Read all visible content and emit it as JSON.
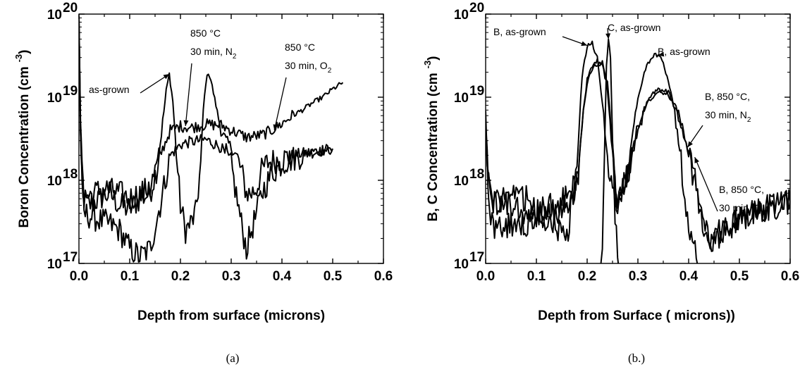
{
  "chart_data": [
    {
      "type": "line",
      "panel": "a",
      "caption": "(a)",
      "xlabel": "Depth from surface (microns)",
      "ylabel": "Boron Concentration (cm",
      "ylabel_sup": "-3",
      "ylabel_close": ")",
      "xlim": [
        0,
        0.6
      ],
      "ylim": [
        1e+17,
        1e+20
      ],
      "yscale": "log",
      "xticks": [
        "0.0",
        "0.1",
        "0.2",
        "0.3",
        "0.4",
        "0.5",
        "0.6"
      ],
      "ytick_mantissa": "10",
      "ytick_exponents": [
        "17",
        "18",
        "19",
        "20"
      ],
      "grid": false,
      "annotations": [
        {
          "lines": [
            "as-grown"
          ],
          "subscript": "",
          "tip": [
            0.178,
            1.9e+19
          ]
        },
        {
          "lines": [
            "850 °C",
            "30 min, N"
          ],
          "subscript": "2",
          "tip": [
            0.21,
            4.5e+18
          ]
        },
        {
          "lines": [
            "850 °C",
            "30 min, O"
          ],
          "subscript": "2",
          "tip": [
            0.385,
            4e+18
          ]
        }
      ],
      "series": [
        {
          "name": "as-grown",
          "x": [
            0.0,
            0.003,
            0.006,
            0.01,
            0.02,
            0.04,
            0.06,
            0.08,
            0.1,
            0.12,
            0.14,
            0.155,
            0.165,
            0.172,
            0.178,
            0.185,
            0.192,
            0.2,
            0.21,
            0.22,
            0.23,
            0.24,
            0.245,
            0.25,
            0.255,
            0.26,
            0.27,
            0.28,
            0.29,
            0.3,
            0.31,
            0.32,
            0.33,
            0.34,
            0.35,
            0.36,
            0.37,
            0.38,
            0.4,
            0.42,
            0.44,
            0.46,
            0.48,
            0.5
          ],
          "y": [
            9e+19,
            5e+18,
            1.5e+18,
            6e+17,
            5e+17,
            6e+17,
            7e+17,
            5e+17,
            4.5e+17,
            6e+17,
            7e+17,
            1.5e+18,
            5e+18,
            1.2e+19,
            1.9e+19,
            9e+18,
            2e+18,
            5e+17,
            2.5e+17,
            3e+17,
            4e+17,
            1.5e+18,
            7e+18,
            1.5e+19,
            2e+19,
            1.6e+19,
            8e+18,
            4e+18,
            3e+18,
            2.5e+18,
            2e+18,
            1.3e+18,
            7e+17,
            7e+17,
            8e+17,
            1.3e+18,
            1.6e+18,
            1.7e+18,
            1.8e+18,
            2e+18,
            2.1e+18,
            2.2e+18,
            2.3e+18,
            2.4e+18
          ]
        },
        {
          "name": "850 °C 30 min, N2",
          "x": [
            0.0,
            0.003,
            0.006,
            0.01,
            0.03,
            0.06,
            0.08,
            0.1,
            0.12,
            0.14,
            0.16,
            0.18,
            0.2,
            0.22,
            0.25,
            0.28,
            0.3,
            0.32,
            0.33,
            0.34,
            0.35,
            0.36,
            0.38,
            0.4,
            0.42,
            0.45,
            0.48,
            0.5
          ],
          "y": [
            9e+19,
            4e+18,
            1e+18,
            4e+17,
            3.5e+17,
            3e+17,
            2.5e+17,
            1.5e+17,
            1.2e+17,
            1.5e+17,
            5e+17,
            2e+18,
            2.7e+18,
            2.9e+18,
            3.1e+18,
            2.5e+18,
            1.5e+18,
            3e+17,
            1.5e+17,
            2.5e+17,
            4e+17,
            7e+17,
            1.2e+18,
            1.6e+18,
            1.8e+18,
            2.1e+18,
            2.3e+18,
            2.4e+18
          ]
        },
        {
          "name": "850 °C 30 min, O2",
          "x": [
            0.0,
            0.003,
            0.006,
            0.01,
            0.03,
            0.05,
            0.08,
            0.1,
            0.12,
            0.14,
            0.16,
            0.18,
            0.2,
            0.22,
            0.25,
            0.28,
            0.3,
            0.33,
            0.36,
            0.38,
            0.4,
            0.42,
            0.44,
            0.46,
            0.48,
            0.5,
            0.52
          ],
          "y": [
            9e+19,
            4e+18,
            1.2e+18,
            6e+17,
            7e+17,
            8e+17,
            7e+17,
            6e+17,
            7e+17,
            8e+17,
            2e+18,
            4e+18,
            4.5e+18,
            4.3e+18,
            4.7e+18,
            4.6e+18,
            4e+18,
            3.3e+18,
            3.5e+18,
            4e+18,
            4.8e+18,
            6e+18,
            7e+18,
            8.5e+18,
            1e+19,
            1.25e+19,
            1.5e+19
          ]
        }
      ]
    },
    {
      "type": "line",
      "panel": "b",
      "caption": "(b.)",
      "xlabel": "Depth from Surface ( microns))",
      "ylabel": "B, C Concentration (cm",
      "ylabel_sup": "-3",
      "ylabel_close": ")",
      "xlim": [
        0,
        0.6
      ],
      "ylim": [
        1e+17,
        1e+20
      ],
      "yscale": "log",
      "xticks": [
        "0.0",
        "0.1",
        "0.2",
        "0.3",
        "0.4",
        "0.5",
        "0.6"
      ],
      "ytick_mantissa": "10",
      "ytick_exponents": [
        "17",
        "18",
        "19",
        "20"
      ],
      "grid": false,
      "annotations": [
        {
          "lines": [
            "B, as-grown"
          ],
          "subscript": "",
          "tip": [
            0.2,
            4.2e+19
          ]
        },
        {
          "lines": [
            "C, as-grown"
          ],
          "subscript": "",
          "tip": [
            0.242,
            5e+19
          ]
        },
        {
          "lines": [
            "B, as-grown"
          ],
          "subscript": "",
          "tip": [
            0.34,
            3.2e+19
          ]
        },
        {
          "lines": [
            "B, 850 °C,",
            "30 min, N"
          ],
          "subscript": "2",
          "tip": [
            0.398,
            2.5e+18
          ]
        },
        {
          "lines": [
            "B, 850 °C,",
            "30 min, O"
          ],
          "subscript": "2",
          "tip": [
            0.412,
            1.9e+18
          ]
        }
      ],
      "series": [
        {
          "name": "B, as-grown",
          "x": [
            0.0,
            0.003,
            0.006,
            0.01,
            0.03,
            0.05,
            0.07,
            0.1,
            0.13,
            0.16,
            0.18,
            0.19,
            0.2,
            0.21,
            0.22,
            0.23,
            0.24,
            0.25,
            0.26,
            0.27,
            0.28,
            0.29,
            0.3,
            0.31,
            0.32,
            0.33,
            0.34,
            0.35,
            0.36,
            0.37,
            0.38,
            0.39,
            0.4,
            0.41,
            0.42
          ],
          "y": [
            5e+18,
            1.5e+18,
            8e+17,
            6e+17,
            6e+17,
            5e+17,
            4e+17,
            3.5e+17,
            3e+17,
            2e+17,
            1.5e+18,
            1.8e+19,
            4.2e+19,
            4.4e+19,
            3e+19,
            8e+18,
            2e+18,
            7e+17,
            6e+17,
            8e+17,
            1.5e+18,
            4e+18,
            9e+18,
            1.8e+19,
            2.6e+19,
            3.1e+19,
            3.2e+19,
            2.6e+19,
            1.6e+19,
            8e+18,
            3e+18,
            9e+17,
            3e+17,
            1.5e+17,
            1e+17
          ]
        },
        {
          "name": "C, as-grown",
          "x": [
            0.225,
            0.23,
            0.234,
            0.238,
            0.242,
            0.246,
            0.25,
            0.255,
            0.26,
            0.265
          ],
          "y": [
            1e+17,
            1.2e+17,
            2e+18,
            2.5e+19,
            5e+19,
            3e+19,
            3e+18,
            3e+17,
            1.5e+17,
            1e+17
          ]
        },
        {
          "name": "B, 850 °C, 30 min, N2",
          "x": [
            0.0,
            0.003,
            0.006,
            0.01,
            0.03,
            0.05,
            0.08,
            0.1,
            0.13,
            0.16,
            0.18,
            0.19,
            0.2,
            0.21,
            0.22,
            0.23,
            0.24,
            0.25,
            0.26,
            0.28,
            0.3,
            0.32,
            0.34,
            0.36,
            0.38,
            0.4,
            0.42,
            0.43,
            0.44,
            0.45,
            0.46,
            0.48,
            0.5,
            0.52,
            0.55,
            0.58,
            0.6
          ],
          "y": [
            4e+18,
            1.5e+18,
            6e+17,
            3e+17,
            2.5e+17,
            3e+17,
            3e+17,
            3e+17,
            4e+17,
            5e+17,
            8e+17,
            5e+18,
            1.5e+19,
            2.2e+19,
            2.5e+19,
            2.4e+19,
            1.3e+19,
            2e+18,
            4e+17,
            1.2e+18,
            4e+18,
            9e+18,
            1.2e+19,
            1.1e+19,
            6e+18,
            2e+18,
            5e+17,
            2.5e+17,
            1.8e+17,
            1.7e+17,
            2.5e+17,
            3e+17,
            3.5e+17,
            4e+17,
            4.5e+17,
            5e+17,
            5.5e+17
          ]
        },
        {
          "name": "B, 850 °C, 30 min, O2",
          "x": [
            0.0,
            0.003,
            0.006,
            0.01,
            0.03,
            0.05,
            0.08,
            0.1,
            0.13,
            0.16,
            0.18,
            0.19,
            0.2,
            0.21,
            0.22,
            0.23,
            0.24,
            0.25,
            0.26,
            0.28,
            0.3,
            0.32,
            0.34,
            0.36,
            0.38,
            0.4,
            0.42,
            0.43,
            0.44,
            0.45,
            0.46,
            0.48,
            0.5,
            0.52,
            0.55,
            0.58,
            0.6
          ],
          "y": [
            7e+18,
            2e+18,
            1e+18,
            6e+17,
            5e+17,
            6e+17,
            6e+17,
            4e+17,
            5e+17,
            6e+17,
            1e+18,
            5e+18,
            1.6e+19,
            2.3e+19,
            2.7e+19,
            2.6e+19,
            1.5e+19,
            2.5e+18,
            5e+17,
            1.3e+18,
            4.5e+18,
            9.5e+18,
            1.25e+19,
            1.15e+19,
            6.5e+18,
            2.2e+18,
            6e+17,
            3e+17,
            2e+17,
            1.7e+17,
            2.2e+17,
            2.8e+17,
            3.4e+17,
            4e+17,
            4.6e+17,
            5e+17,
            5.5e+17
          ]
        }
      ]
    }
  ]
}
